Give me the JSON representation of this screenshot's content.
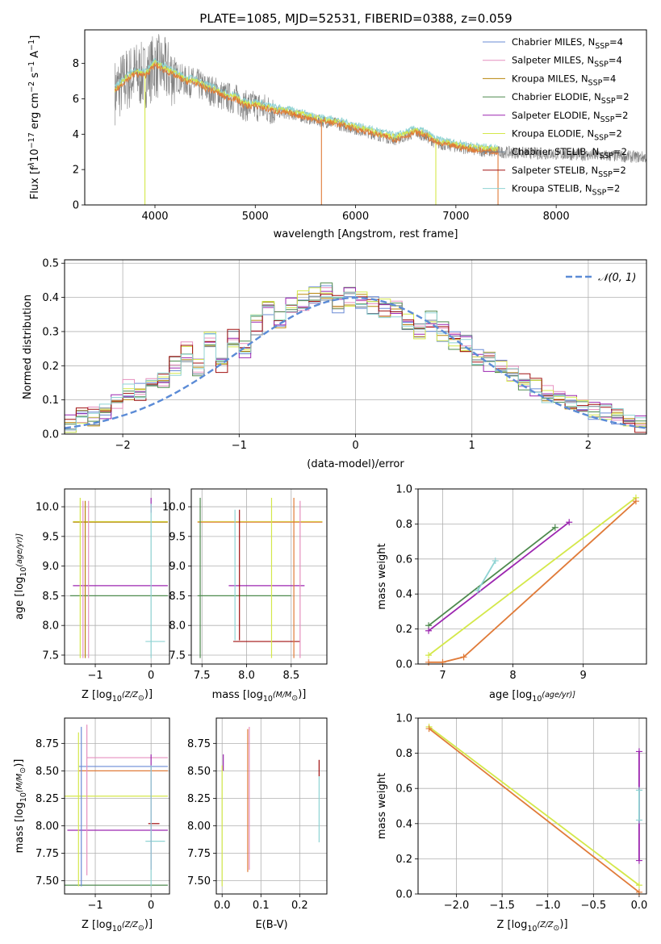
{
  "page_title": "PLATE=1085, MJD=52531, FIBERID=0388, z=0.059",
  "colors": {
    "Chabrier MILES": "#6a8bd6",
    "Salpeter MILES": "#e68fbf",
    "Kroupa MILES": "#b8860b",
    "Chabrier ELODIE": "#4e8a4e",
    "Salpeter ELODIE": "#9c27b0",
    "Kroupa ELODIE": "#d4e84a",
    "Chabrier STELIB": "#708090",
    "Salpeter STELIB": "#a01010",
    "Kroupa STELIB": "#8fd3d3",
    "data": "#808080",
    "orange_fit": "#e07b39",
    "gauss": "#5b8bd6"
  },
  "chart_data": [
    {
      "id": "spectrum",
      "type": "line",
      "title": "PLATE=1085, MJD=52531, FIBERID=0388, z=0.059",
      "xlabel": "wavelength [Angstrom, rest frame]",
      "ylabel_parts": [
        "Flux [f",
        "λ",
        "10",
        "−17",
        " erg cm",
        "−2",
        " s",
        "−1",
        " A",
        "−1",
        "]"
      ],
      "xlim": [
        3300,
        8900
      ],
      "ylim": [
        0,
        9.9
      ],
      "xticks": [
        "4000",
        "5000",
        "6000",
        "7000",
        "8000"
      ],
      "xtick_values": [
        4000,
        5000,
        6000,
        7000,
        8000
      ],
      "yticks": [
        "0",
        "2",
        "4",
        "6",
        "8"
      ],
      "ytick_values": [
        0,
        2,
        4,
        6,
        8
      ],
      "grid": false,
      "legend_position": "top-right",
      "legend": [
        {
          "name": "Chabrier MILES, N",
          "sub": "SSP",
          "tail": "=4"
        },
        {
          "name": "Salpeter MILES, N",
          "sub": "SSP",
          "tail": "=4"
        },
        {
          "name": "Kroupa MILES, N",
          "sub": "SSP",
          "tail": "=4"
        },
        {
          "name": "Chabrier ELODIE, N",
          "sub": "SSP",
          "tail": "=2"
        },
        {
          "name": "Salpeter ELODIE, N",
          "sub": "SSP",
          "tail": "=2"
        },
        {
          "name": "Kroupa ELODIE, N",
          "sub": "SSP",
          "tail": "=2"
        },
        {
          "name": "Chabrier STELIB, N",
          "sub": "SSP",
          "tail": "=2"
        },
        {
          "name": "Salpeter STELIB, N",
          "sub": "SSP",
          "tail": "=2"
        },
        {
          "name": "Kroupa STELIB, N",
          "sub": "SSP",
          "tail": "=2"
        }
      ],
      "model_curve": {
        "x": [
          3600,
          3700,
          3800,
          3900,
          4000,
          4100,
          4200,
          4300,
          4400,
          4500,
          4600,
          4700,
          4800,
          4900,
          5000,
          5200,
          5400,
          5600,
          5800,
          6000,
          6200,
          6400,
          6600,
          6700,
          6800,
          7000,
          7200,
          7400
        ],
        "y": [
          6.4,
          7.0,
          7.4,
          7.3,
          7.9,
          7.6,
          7.3,
          7.0,
          6.9,
          6.6,
          6.4,
          6.1,
          6.0,
          5.6,
          5.6,
          5.3,
          5.1,
          4.8,
          4.6,
          4.3,
          4.0,
          3.7,
          4.1,
          3.9,
          3.5,
          3.3,
          3.1,
          3.0
        ]
      }
    },
    {
      "id": "residuals",
      "type": "step",
      "xlabel": "(data-model)/error",
      "ylabel": "Normed distribution",
      "xlim": [
        -2.5,
        2.5
      ],
      "ylim": [
        0,
        0.51
      ],
      "xticks": [
        "−2",
        "−1",
        "0",
        "1",
        "2"
      ],
      "xtick_values": [
        -2,
        -1,
        0,
        1,
        2
      ],
      "yticks": [
        "0.0",
        "0.1",
        "0.2",
        "0.3",
        "0.4",
        "0.5"
      ],
      "ytick_values": [
        0,
        0.1,
        0.2,
        0.3,
        0.4,
        0.5
      ],
      "grid": true,
      "legend_position": "top-right",
      "legend": [
        {
          "name": "𝒩(0, 1)"
        }
      ],
      "bin_edges": [
        -2.5,
        -2.4,
        -2.3,
        -2.2,
        -2.1,
        -2.0,
        -1.9,
        -1.8,
        -1.7,
        -1.6,
        -1.5,
        -1.4,
        -1.3,
        -1.2,
        -1.1,
        -1.0,
        -0.9,
        -0.8,
        -0.7,
        -0.6,
        -0.5,
        -0.4,
        -0.3,
        -0.2,
        -0.1,
        0.0,
        0.1,
        0.2,
        0.3,
        0.4,
        0.5,
        0.6,
        0.7,
        0.8,
        0.9,
        1.0,
        1.1,
        1.2,
        1.3,
        1.4,
        1.5,
        1.6,
        1.7,
        1.8,
        1.9,
        2.0,
        2.1,
        2.2,
        2.3,
        2.4,
        2.5
      ],
      "histogram": [
        0.03,
        0.06,
        0.05,
        0.07,
        0.1,
        0.13,
        0.12,
        0.15,
        0.16,
        0.2,
        0.24,
        0.2,
        0.27,
        0.21,
        0.28,
        0.25,
        0.32,
        0.36,
        0.34,
        0.38,
        0.39,
        0.41,
        0.42,
        0.38,
        0.4,
        0.39,
        0.38,
        0.37,
        0.36,
        0.33,
        0.3,
        0.33,
        0.3,
        0.27,
        0.26,
        0.23,
        0.21,
        0.2,
        0.17,
        0.15,
        0.14,
        0.12,
        0.11,
        0.09,
        0.08,
        0.07,
        0.06,
        0.05,
        0.04,
        0.03
      ]
    },
    {
      "id": "age-vs-Z",
      "type": "errorbar",
      "xlabel_parts": [
        "Z [log",
        "10",
        "(Z/Z",
        "⊙",
        ")]"
      ],
      "ylabel_parts": [
        "age  [log",
        "10",
        "(age/yr)]"
      ],
      "xlim": [
        -1.55,
        0.33
      ],
      "ylim": [
        7.35,
        10.3
      ],
      "xticks": [
        "−1",
        "0"
      ],
      "xtick_values": [
        -1,
        0
      ],
      "yticks": [
        "7.5",
        "8.0",
        "8.5",
        "9.0",
        "9.5",
        "10.0"
      ],
      "ytick_values": [
        7.5,
        8.0,
        8.5,
        9.0,
        9.5,
        10.0
      ],
      "grid": true,
      "horizontal_bars": [
        {
          "series": "Kroupa ELODIE",
          "y": 9.75,
          "x0": -1.4,
          "x1": 0.3
        },
        {
          "series": "Kroupa MILES",
          "y": 9.74,
          "x0": -1.4,
          "x1": 0.3
        },
        {
          "series": "Salpeter ELODIE",
          "y": 8.67,
          "x0": -1.4,
          "x1": 0.3
        },
        {
          "series": "Chabrier ELODIE",
          "y": 8.5,
          "x0": -1.45,
          "x1": 0.3
        },
        {
          "series": "Kroupa STELIB",
          "y": 7.73,
          "x0": -0.1,
          "x1": 0.25
        }
      ],
      "vertical_bars": [
        {
          "series": "Kroupa ELODIE",
          "x": -1.27,
          "y0": 7.45,
          "y1": 10.15
        },
        {
          "series": "Salpeter MILES",
          "x": -1.22,
          "y0": 7.45,
          "y1": 10.1
        },
        {
          "series": "Kroupa MILES",
          "x": -1.18,
          "y0": 7.45,
          "y1": 10.1
        },
        {
          "series": "Salpeter MILES",
          "x": -1.12,
          "y0": 7.45,
          "y1": 10.1
        },
        {
          "series": "Salpeter ELODIE",
          "x": 0.0,
          "y0": 9.9,
          "y1": 10.15
        },
        {
          "series": "Kroupa STELIB",
          "x": 0.0,
          "y0": 7.45,
          "y1": 10.05
        }
      ]
    },
    {
      "id": "age-vs-mass",
      "type": "errorbar",
      "xlabel_parts": [
        "mass [log",
        "10",
        "(M/M",
        "⊙",
        ")]"
      ],
      "xlim": [
        7.38,
        8.9
      ],
      "ylim": [
        7.35,
        10.3
      ],
      "xticks": [
        "7.5",
        "8.0",
        "8.5"
      ],
      "xtick_values": [
        7.5,
        8.0,
        8.5
      ],
      "yticks": [
        "7.5",
        "8.0",
        "8.5",
        "9.0",
        "9.5",
        "10.0"
      ],
      "ytick_values": [
        7.5,
        8.0,
        8.5,
        9.0,
        9.5,
        10.0
      ],
      "grid": true,
      "horizontal_bars": [
        {
          "series": "Kroupa ELODIE",
          "y": 9.75,
          "x0": 7.45,
          "x1": 8.85
        },
        {
          "series": "orange",
          "y": 9.74,
          "x0": 7.45,
          "x1": 8.85
        },
        {
          "series": "Salpeter ELODIE",
          "y": 8.67,
          "x0": 7.8,
          "x1": 8.65
        },
        {
          "series": "Chabrier ELODIE",
          "y": 8.5,
          "x0": 7.45,
          "x1": 8.5
        },
        {
          "series": "Salpeter STELIB",
          "y": 7.73,
          "x0": 7.85,
          "x1": 8.6
        }
      ],
      "vertical_bars": [
        {
          "series": "Chabrier ELODIE",
          "x": 7.48,
          "y0": 7.45,
          "y1": 10.15
        },
        {
          "series": "Kroupa STELIB",
          "x": 7.87,
          "y0": 7.75,
          "y1": 9.95
        },
        {
          "series": "Salpeter STELIB",
          "x": 7.92,
          "y0": 7.75,
          "y1": 9.95
        },
        {
          "series": "Kroupa ELODIE",
          "x": 8.28,
          "y0": 7.45,
          "y1": 10.15
        },
        {
          "series": "orange",
          "x": 8.53,
          "y0": 7.45,
          "y1": 10.15
        },
        {
          "series": "Salpeter MILES",
          "x": 8.6,
          "y0": 7.45,
          "y1": 10.1
        }
      ]
    },
    {
      "id": "massweight-vs-age",
      "type": "line",
      "xlabel_parts": [
        "age  [log",
        "10",
        "(age/yr)]"
      ],
      "ylabel": "mass weight",
      "xlim": [
        6.65,
        9.9
      ],
      "ylim": [
        0,
        1.0
      ],
      "xticks": [
        "7",
        "8",
        "9"
      ],
      "xtick_values": [
        7,
        8,
        9
      ],
      "yticks": [
        "0.0",
        "0.2",
        "0.4",
        "0.6",
        "0.8",
        "1.0"
      ],
      "ytick_values": [
        0,
        0.2,
        0.4,
        0.6,
        0.8,
        1.0
      ],
      "grid": true,
      "series": [
        {
          "name": "Chabrier ELODIE",
          "x": [
            6.8,
            8.6
          ],
          "y": [
            0.22,
            0.78
          ]
        },
        {
          "name": "Salpeter ELODIE",
          "x": [
            6.8,
            8.8
          ],
          "y": [
            0.19,
            0.81
          ]
        },
        {
          "name": "Kroupa STELIB",
          "x": [
            7.5,
            7.75
          ],
          "y": [
            0.42,
            0.59
          ]
        },
        {
          "name": "Kroupa ELODIE",
          "x": [
            6.8,
            9.75
          ],
          "y": [
            0.05,
            0.95
          ]
        },
        {
          "name": "orange",
          "x": [
            6.8,
            7.0,
            7.3,
            9.75
          ],
          "y": [
            0.01,
            0.01,
            0.04,
            0.93
          ]
        }
      ]
    },
    {
      "id": "mass-vs-Z",
      "type": "errorbar",
      "xlabel_parts": [
        "Z [log",
        "10",
        "(Z/Z",
        "⊙",
        ")]"
      ],
      "ylabel_parts": [
        "mass [log",
        "10",
        "(M/M",
        "⊙",
        ")]"
      ],
      "xlim": [
        -1.55,
        0.33
      ],
      "ylim": [
        7.38,
        8.98
      ],
      "xticks": [
        "−1",
        "0"
      ],
      "xtick_values": [
        -1,
        0
      ],
      "yticks": [
        "7.50",
        "7.75",
        "8.00",
        "8.25",
        "8.50",
        "8.75"
      ],
      "ytick_values": [
        7.5,
        7.75,
        8.0,
        8.25,
        8.5,
        8.75
      ],
      "grid": true,
      "horizontal_bars": [
        {
          "series": "Salpeter MILES",
          "y": 8.62,
          "x0": -1.15,
          "x1": 0.3
        },
        {
          "series": "Chabrier MILES",
          "y": 8.54,
          "x0": -1.3,
          "x1": 0.3
        },
        {
          "series": "orange",
          "y": 8.5,
          "x0": -1.3,
          "x1": 0.3
        },
        {
          "series": "Kroupa ELODIE",
          "y": 8.27,
          "x0": -1.55,
          "x1": 0.3
        },
        {
          "series": "Salpeter STELIB",
          "y": 8.02,
          "x0": -0.05,
          "x1": 0.15
        },
        {
          "series": "Salpeter ELODIE",
          "y": 7.96,
          "x0": -1.5,
          "x1": 0.3
        },
        {
          "series": "Kroupa STELIB",
          "y": 7.86,
          "x0": -0.1,
          "x1": 0.25
        },
        {
          "series": "Chabrier ELODIE",
          "y": 7.46,
          "x0": -1.55,
          "x1": 0.3
        }
      ],
      "vertical_bars": [
        {
          "series": "Kroupa ELODIE",
          "x": -1.3,
          "y0": 7.45,
          "y1": 8.85
        },
        {
          "series": "Chabrier MILES",
          "x": -1.25,
          "y0": 7.45,
          "y1": 8.9
        },
        {
          "series": "Salpeter MILES",
          "x": -1.15,
          "y0": 7.55,
          "y1": 8.92
        },
        {
          "series": "Salpeter ELODIE",
          "x": 0.0,
          "y0": 7.6,
          "y1": 8.65
        },
        {
          "series": "Kroupa STELIB",
          "x": 0.0,
          "y0": 7.45,
          "y1": 8.55
        }
      ]
    },
    {
      "id": "mass-vs-ebv",
      "type": "errorbar",
      "xlabel": "E(B-V)",
      "xlim": [
        -0.015,
        0.27
      ],
      "ylim": [
        7.38,
        8.98
      ],
      "xticks": [
        "0.0",
        "0.1",
        "0.2"
      ],
      "xtick_values": [
        0,
        0.1,
        0.2
      ],
      "yticks": [
        "7.50",
        "7.75",
        "8.00",
        "8.25",
        "8.50",
        "8.75"
      ],
      "ytick_values": [
        7.5,
        7.75,
        8.0,
        8.25,
        8.5,
        8.75
      ],
      "grid": true,
      "vertical_bars": [
        {
          "series": "Kroupa ELODIE",
          "x": 0.0,
          "y0": 7.45,
          "y1": 8.55
        },
        {
          "series": "Salpeter ELODIE",
          "x": 0.003,
          "y0": 8.5,
          "y1": 8.65
        },
        {
          "series": "orange",
          "x": 0.066,
          "y0": 7.58,
          "y1": 8.88
        },
        {
          "series": "Salpeter MILES",
          "x": 0.07,
          "y0": 7.6,
          "y1": 8.9
        },
        {
          "series": "Salpeter STELIB",
          "x": 0.25,
          "y0": 8.45,
          "y1": 8.6
        },
        {
          "series": "Kroupa STELIB",
          "x": 0.25,
          "y0": 7.85,
          "y1": 8.45
        }
      ]
    },
    {
      "id": "massweight-vs-Z",
      "type": "line",
      "xlabel_parts": [
        "Z [log",
        "10",
        "(Z/Z",
        "⊙",
        ")]"
      ],
      "ylabel": "mass weight",
      "xlim": [
        -2.42,
        0.08
      ],
      "ylim": [
        0,
        1.0
      ],
      "xticks": [
        "−2.0",
        "−1.5",
        "−1.0",
        "−0.5",
        "0.0"
      ],
      "xtick_values": [
        -2.0,
        -1.5,
        -1.0,
        -0.5,
        0.0
      ],
      "yticks": [
        "0.0",
        "0.2",
        "0.4",
        "0.6",
        "0.8",
        "1.0"
      ],
      "ytick_values": [
        0,
        0.2,
        0.4,
        0.6,
        0.8,
        1.0
      ],
      "grid": true,
      "series": [
        {
          "name": "Kroupa ELODIE",
          "x": [
            -2.3,
            0.0
          ],
          "y": [
            0.95,
            0.05
          ]
        },
        {
          "name": "orange",
          "x": [
            -2.3,
            0.0
          ],
          "y": [
            0.94,
            0.01
          ]
        },
        {
          "name": "Salpeter ELODIE",
          "x": [
            0.0,
            0.0
          ],
          "y": [
            0.19,
            0.81
          ]
        },
        {
          "name": "Kroupa STELIB",
          "x": [
            0.0,
            0.0
          ],
          "y": [
            0.42,
            0.59
          ]
        }
      ]
    }
  ]
}
